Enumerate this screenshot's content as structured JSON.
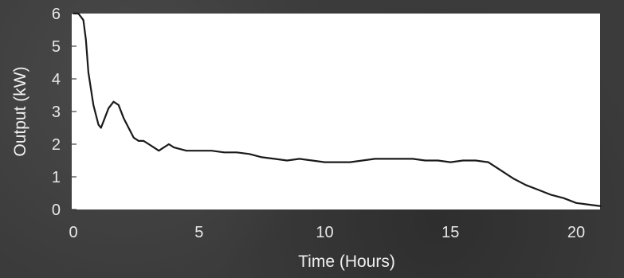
{
  "chart_data": {
    "type": "line",
    "title": "",
    "xlabel": "Time (Hours)",
    "ylabel": "Output (kW)",
    "xlim": [
      0,
      21
    ],
    "ylim": [
      0,
      6
    ],
    "xticks": [
      0,
      5,
      10,
      15,
      20
    ],
    "yticks": [
      0,
      1,
      2,
      3,
      4,
      5,
      6
    ],
    "grid": false,
    "legend": "none",
    "colors": {
      "line": "#1a1a1a",
      "plot_bg": "#ffffff",
      "text": "#e8e8e8"
    },
    "series": [
      {
        "x": [
          0.0,
          0.1,
          0.2,
          0.3,
          0.4,
          0.5,
          0.6,
          0.8,
          1.0,
          1.1,
          1.2,
          1.4,
          1.6,
          1.8,
          2.0,
          2.2,
          2.4,
          2.6,
          2.8,
          3.0,
          3.2,
          3.4,
          3.6,
          3.8,
          4.0,
          4.5,
          5.0,
          5.5,
          6.0,
          6.5,
          7.0,
          7.5,
          8.0,
          8.5,
          9.0,
          9.5,
          10.0,
          10.5,
          11.0,
          11.5,
          12.0,
          12.5,
          13.0,
          13.5,
          14.0,
          14.5,
          15.0,
          15.5,
          16.0,
          16.5,
          17.0,
          17.5,
          18.0,
          18.5,
          19.0,
          19.5,
          20.0,
          20.5,
          21.0
        ],
        "y": [
          6.0,
          6.0,
          6.0,
          5.9,
          5.8,
          5.2,
          4.2,
          3.2,
          2.6,
          2.5,
          2.7,
          3.1,
          3.3,
          3.2,
          2.8,
          2.5,
          2.2,
          2.1,
          2.1,
          2.0,
          1.9,
          1.8,
          1.9,
          2.0,
          1.9,
          1.8,
          1.8,
          1.8,
          1.75,
          1.75,
          1.7,
          1.6,
          1.55,
          1.5,
          1.55,
          1.5,
          1.45,
          1.45,
          1.45,
          1.5,
          1.55,
          1.55,
          1.55,
          1.55,
          1.5,
          1.5,
          1.45,
          1.5,
          1.5,
          1.45,
          1.2,
          0.95,
          0.75,
          0.6,
          0.45,
          0.35,
          0.2,
          0.15,
          0.1
        ]
      }
    ]
  }
}
